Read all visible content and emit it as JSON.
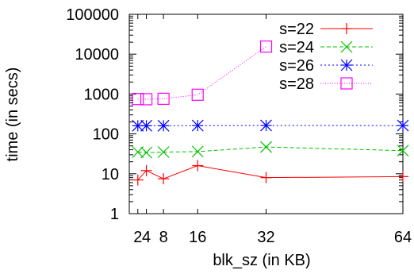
{
  "chart_data": {
    "type": "line",
    "x": [
      2,
      4,
      8,
      16,
      32,
      64
    ],
    "xlabel": "blk_sz (in KB)",
    "ylabel": "time (in secs)",
    "x_ticks": [
      2,
      4,
      8,
      16,
      32,
      64
    ],
    "x_tick_labels": [
      "2",
      "4",
      "8",
      "16",
      "32",
      "64"
    ],
    "y_ticks": [
      1,
      10,
      100,
      1000,
      10000,
      100000
    ],
    "y_tick_labels": [
      "1",
      "10",
      "100",
      "1000",
      "10000",
      "100000"
    ],
    "xlim": [
      0,
      64
    ],
    "ylim": [
      1,
      100000
    ],
    "y_scale": "log",
    "grid": false,
    "legend_position": "top-right",
    "series": [
      {
        "name": "s=22",
        "x": [
          2,
          4,
          8,
          16,
          32,
          64
        ],
        "values": [
          7,
          12,
          7.5,
          16,
          8,
          8.5
        ],
        "color": "#ff0000",
        "marker": "plus",
        "dash": "solid"
      },
      {
        "name": "s=24",
        "x": [
          2,
          4,
          8,
          16,
          32,
          64
        ],
        "values": [
          35,
          34,
          35,
          36,
          47,
          38
        ],
        "color": "#00c000",
        "marker": "x",
        "dash": "dashed"
      },
      {
        "name": "s=26",
        "x": [
          2,
          4,
          8,
          16,
          32,
          64
        ],
        "values": [
          160,
          160,
          160,
          162,
          163,
          162
        ],
        "color": "#0000ff",
        "marker": "star",
        "dash": "dotted"
      },
      {
        "name": "s=28",
        "x": [
          2,
          4,
          8,
          16,
          32
        ],
        "values": [
          750,
          740,
          760,
          960,
          15500
        ],
        "color": "#ff00ff",
        "marker": "square",
        "dash": "dotted-fine"
      }
    ]
  }
}
